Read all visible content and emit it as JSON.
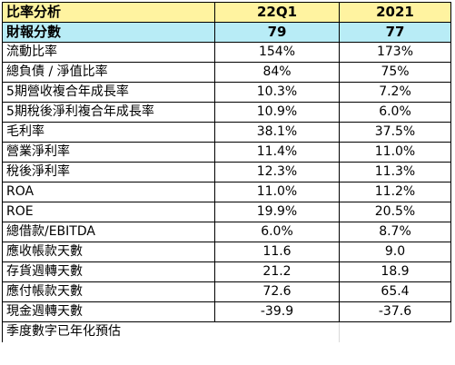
{
  "header": {
    "label": "比率分析",
    "col1": "22Q1",
    "col2": "2021"
  },
  "score": {
    "label": "財報分數",
    "col1": "79",
    "col2": "77"
  },
  "rows": [
    {
      "label": "流動比率",
      "col1": "154%",
      "col2": "173%"
    },
    {
      "label": "總負債 / 淨值比率",
      "col1": "84%",
      "col2": "75%"
    },
    {
      "label": "5期營收複合年成長率",
      "col1": "10.3%",
      "col2": "7.2%"
    },
    {
      "label": "5期稅後淨利複合年成長率",
      "col1": "10.9%",
      "col2": "6.0%"
    },
    {
      "label": "毛利率",
      "col1": "38.1%",
      "col2": "37.5%"
    },
    {
      "label": "營業淨利率",
      "col1": "11.4%",
      "col2": "11.0%"
    },
    {
      "label": "稅後淨利率",
      "col1": "12.3%",
      "col2": "11.3%"
    },
    {
      "label": "ROA",
      "col1": "11.0%",
      "col2": "11.2%"
    },
    {
      "label": "ROE",
      "col1": "19.9%",
      "col2": "20.5%"
    },
    {
      "label": "總借款/EBITDA",
      "col1": "6.0%",
      "col2": "8.7%"
    },
    {
      "label": "應收帳款天數",
      "col1": "11.6",
      "col2": "9.0"
    },
    {
      "label": "存貨週轉天數",
      "col1": "21.2",
      "col2": "18.9"
    },
    {
      "label": "應付帳款天數",
      "col1": "72.6",
      "col2": "65.4"
    },
    {
      "label": "現金週轉天數",
      "col1": "-39.9",
      "col2": "-37.6"
    }
  ],
  "note": "季度數字已年化預估",
  "colors": {
    "header_bg": "#fff3a0",
    "score_bg": "#b8ecf6"
  }
}
